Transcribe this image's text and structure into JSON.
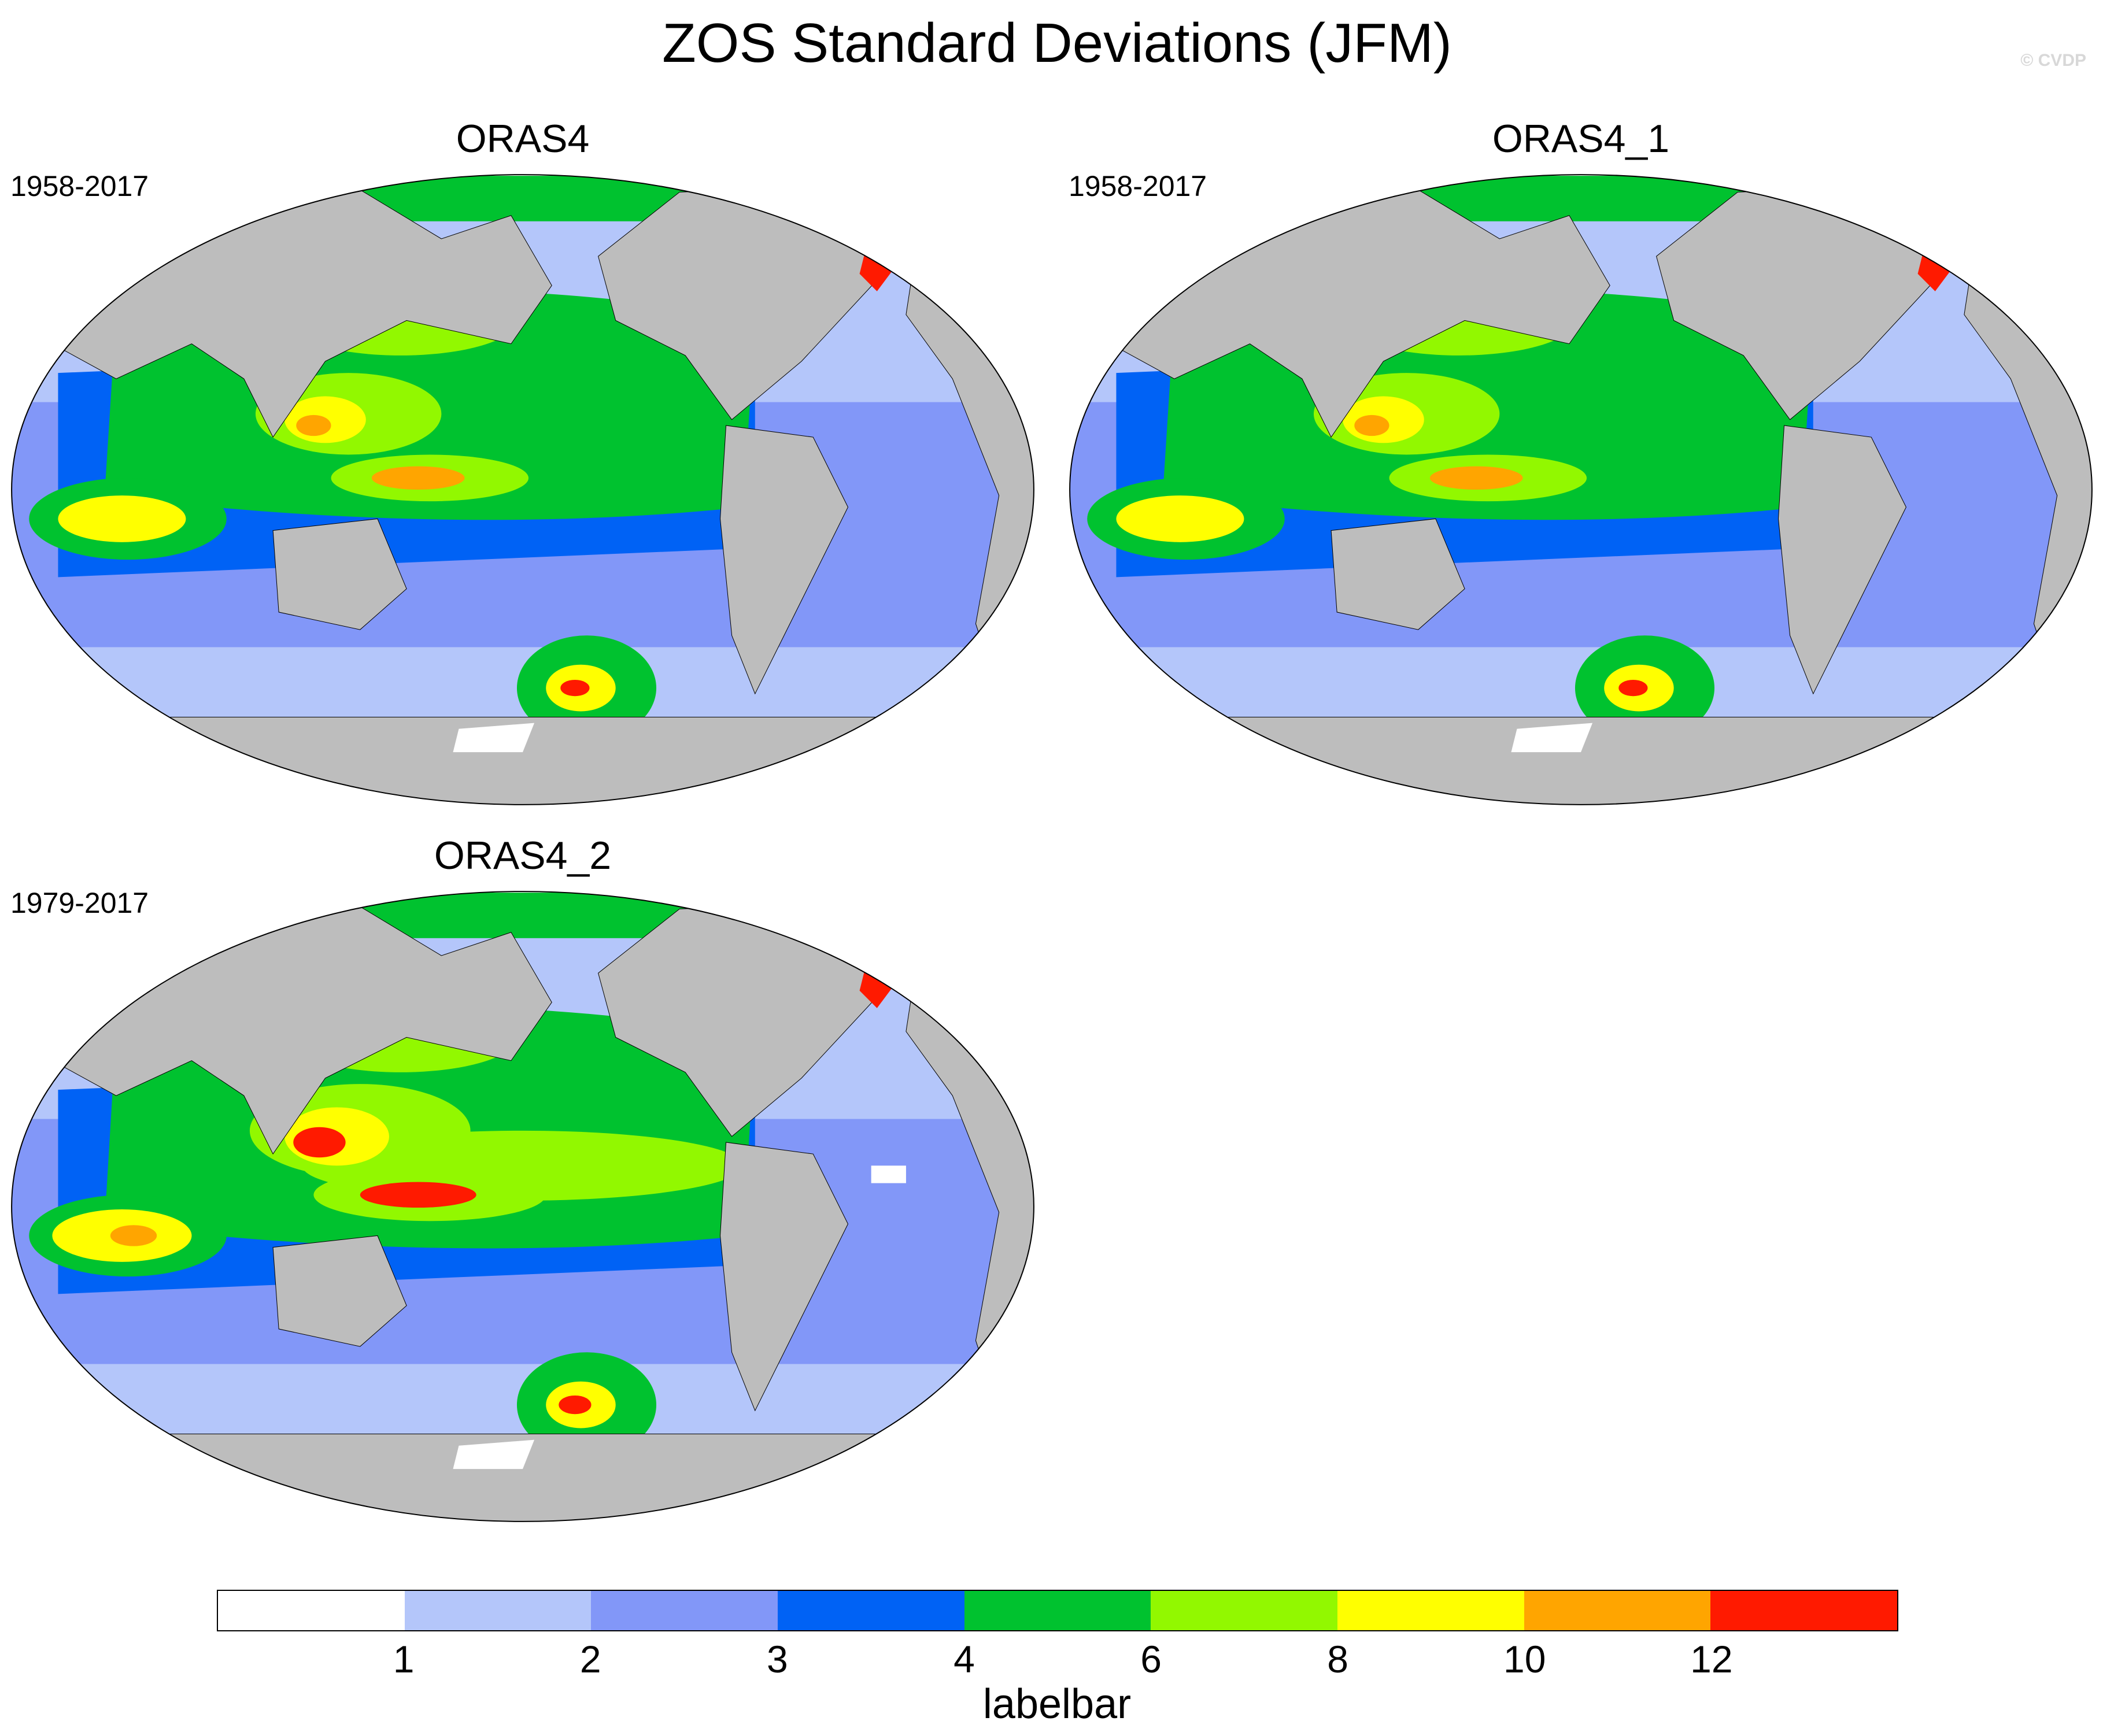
{
  "title": "ZOS Standard Deviations (JFM)",
  "watermark": "© CVDP",
  "panels": [
    {
      "name": "ORAS4",
      "period": "1958-2017"
    },
    {
      "name": "ORAS4_1",
      "period": "1958-2017"
    },
    {
      "name": "ORAS4_2",
      "period": "1979-2017"
    }
  ],
  "labelbar": {
    "caption": "labelbar",
    "ticks": [
      "1",
      "2",
      "3",
      "4",
      "6",
      "8",
      "10",
      "12"
    ],
    "colors": [
      "#ffffff",
      "#b4c6fa",
      "#8297f8",
      "#0062f5",
      "#00c22f",
      "#92f800",
      "#ffff00",
      "#ffa500",
      "#ff1a00"
    ]
  }
}
